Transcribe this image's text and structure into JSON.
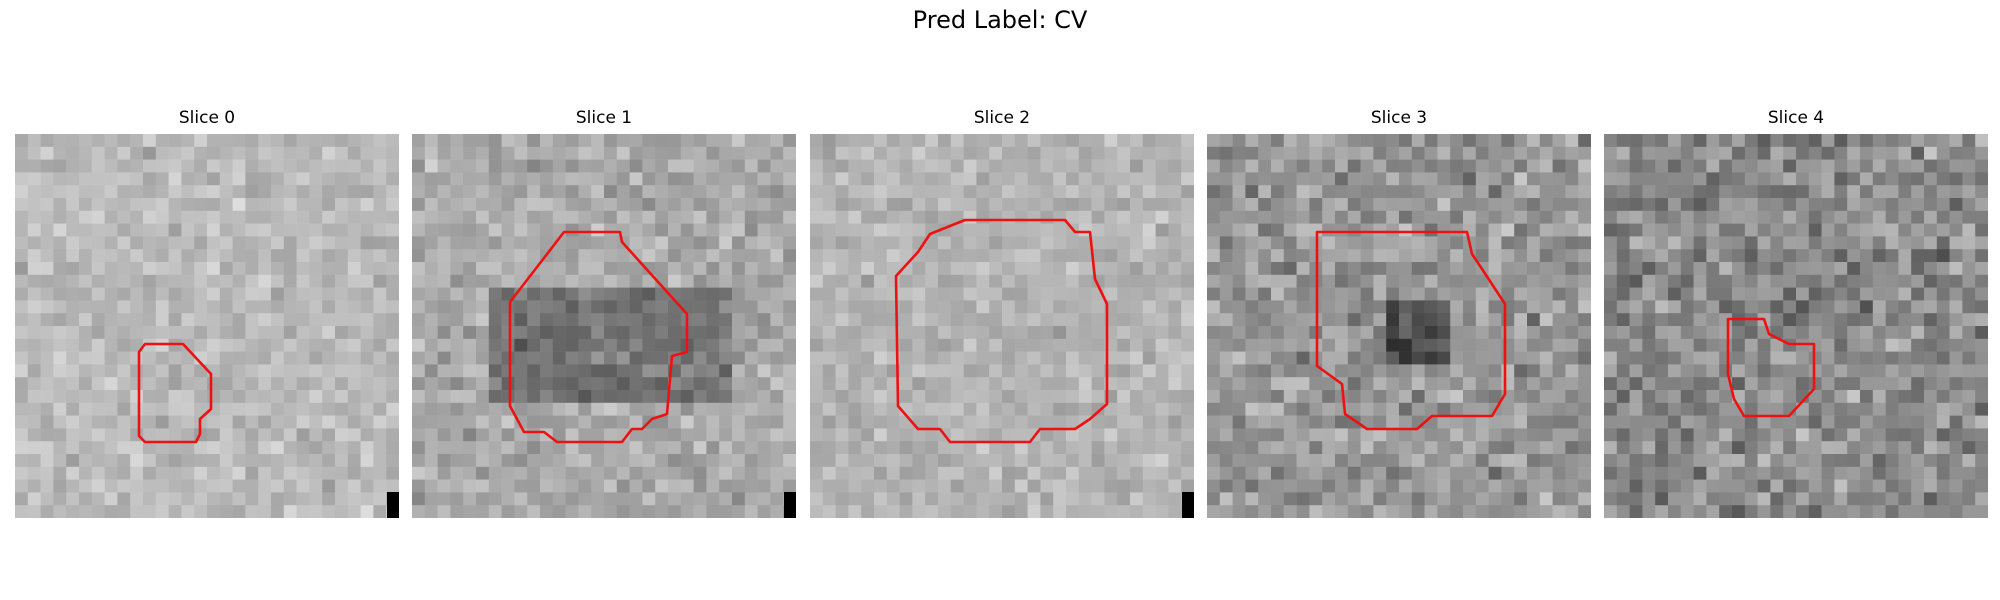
{
  "figure": {
    "title": "Pred Label: CV"
  },
  "contour_color": "#ee1111",
  "panels": [
    {
      "title": "Slice 0",
      "base": 185,
      "var": 34,
      "seed": 11,
      "has_marker": true
    },
    {
      "title": "Slice 1",
      "base": 170,
      "var": 40,
      "seed": 23,
      "has_marker": true
    },
    {
      "title": "Slice 2",
      "base": 180,
      "var": 32,
      "seed": 37,
      "has_marker": true
    },
    {
      "title": "Slice 3",
      "base": 150,
      "var": 55,
      "seed": 51,
      "has_marker": false
    },
    {
      "title": "Slice 4",
      "base": 140,
      "var": 60,
      "seed": 67,
      "has_marker": false
    }
  ]
}
